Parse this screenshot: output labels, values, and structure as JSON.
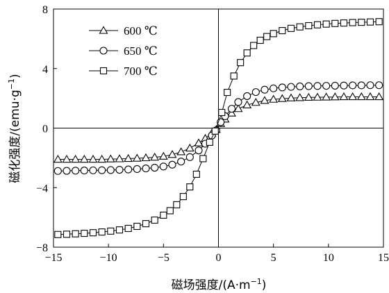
{
  "chart_data": {
    "type": "scatter",
    "xlabel": "磁场强度/(A·m",
    "xlabel_sup": "−1",
    "xlabel_end": ")",
    "ylabel": "磁化强度/(emu·g",
    "ylabel_sup": "−1",
    "ylabel_end": ")",
    "xlim": [
      -15,
      15
    ],
    "ylim": [
      -8,
      8
    ],
    "xticks": [
      -15,
      -10,
      -5,
      0,
      5,
      10,
      15
    ],
    "xtick_labels": [
      "−15",
      "−10",
      "−5",
      "0",
      "5",
      "10",
      "15"
    ],
    "yticks": [
      -8,
      -4,
      0,
      4,
      8
    ],
    "ytick_labels": [
      "−8",
      "−4",
      "0",
      "4",
      "8"
    ],
    "zero_lines": true,
    "legend_position": "top-left",
    "series": [
      {
        "name": "600 ℃",
        "marker": "triangle",
        "x": [
          -14.6,
          -13.8,
          -13.0,
          -12.2,
          -11.4,
          -10.6,
          -9.8,
          -9.0,
          -8.2,
          -7.4,
          -6.6,
          -5.8,
          -5.0,
          -4.2,
          -3.4,
          -2.6,
          -1.8,
          -1.2,
          -0.6,
          -0.2,
          0.2,
          0.6,
          1.2,
          1.8,
          2.6,
          3.4,
          4.2,
          5.0,
          5.8,
          6.6,
          7.4,
          8.2,
          9.0,
          9.8,
          10.6,
          11.4,
          12.2,
          13.0,
          13.8,
          14.6
        ],
        "y": [
          -2.1,
          -2.1,
          -2.1,
          -2.1,
          -2.1,
          -2.1,
          -2.08,
          -2.07,
          -2.05,
          -2.03,
          -2.0,
          -1.96,
          -1.9,
          -1.78,
          -1.6,
          -1.35,
          -1.0,
          -0.7,
          -0.35,
          -0.1,
          0.3,
          0.6,
          1.0,
          1.3,
          1.55,
          1.72,
          1.85,
          1.93,
          1.98,
          2.02,
          2.04,
          2.06,
          2.07,
          2.08,
          2.09,
          2.1,
          2.1,
          2.1,
          2.1,
          2.1
        ]
      },
      {
        "name": "650 ℃",
        "marker": "circle",
        "x": [
          -14.6,
          -13.8,
          -13.0,
          -12.2,
          -11.4,
          -10.6,
          -9.8,
          -9.0,
          -8.2,
          -7.4,
          -6.6,
          -5.8,
          -5.0,
          -4.2,
          -3.4,
          -2.6,
          -1.8,
          -1.2,
          -0.6,
          -0.2,
          0.2,
          0.6,
          1.2,
          1.8,
          2.6,
          3.4,
          4.2,
          5.0,
          5.8,
          6.6,
          7.4,
          8.2,
          9.0,
          9.8,
          10.6,
          11.4,
          12.2,
          13.0,
          13.8,
          14.6
        ],
        "y": [
          -2.88,
          -2.87,
          -2.86,
          -2.85,
          -2.84,
          -2.83,
          -2.82,
          -2.8,
          -2.78,
          -2.75,
          -2.71,
          -2.66,
          -2.58,
          -2.46,
          -2.25,
          -1.95,
          -1.5,
          -1.05,
          -0.5,
          -0.15,
          0.4,
          0.8,
          1.3,
          1.75,
          2.15,
          2.42,
          2.58,
          2.67,
          2.73,
          2.77,
          2.8,
          2.82,
          2.83,
          2.84,
          2.85,
          2.86,
          2.87,
          2.87,
          2.88,
          2.88
        ]
      },
      {
        "name": "700 ℃",
        "marker": "square",
        "x": [
          -14.6,
          -13.8,
          -13.0,
          -12.2,
          -11.4,
          -10.6,
          -9.8,
          -9.0,
          -8.2,
          -7.4,
          -6.6,
          -5.8,
          -5.0,
          -4.4,
          -3.8,
          -3.2,
          -2.6,
          -2.0,
          -1.4,
          -0.8,
          -0.3,
          0.3,
          0.8,
          1.4,
          2.0,
          2.6,
          3.2,
          3.8,
          4.4,
          5.0,
          5.8,
          6.6,
          7.4,
          8.2,
          9.0,
          9.8,
          10.6,
          11.4,
          12.2,
          13.0,
          13.8,
          14.6
        ],
        "y": [
          -7.15,
          -7.13,
          -7.1,
          -7.07,
          -7.03,
          -6.98,
          -6.92,
          -6.84,
          -6.74,
          -6.6,
          -6.42,
          -6.18,
          -5.85,
          -5.55,
          -5.15,
          -4.6,
          -3.95,
          -3.1,
          -2.05,
          -0.95,
          -0.2,
          1.05,
          2.4,
          3.5,
          4.4,
          5.05,
          5.55,
          5.9,
          6.15,
          6.35,
          6.55,
          6.7,
          6.8,
          6.88,
          6.94,
          6.99,
          7.03,
          7.06,
          7.09,
          7.11,
          7.13,
          7.15
        ]
      }
    ]
  }
}
